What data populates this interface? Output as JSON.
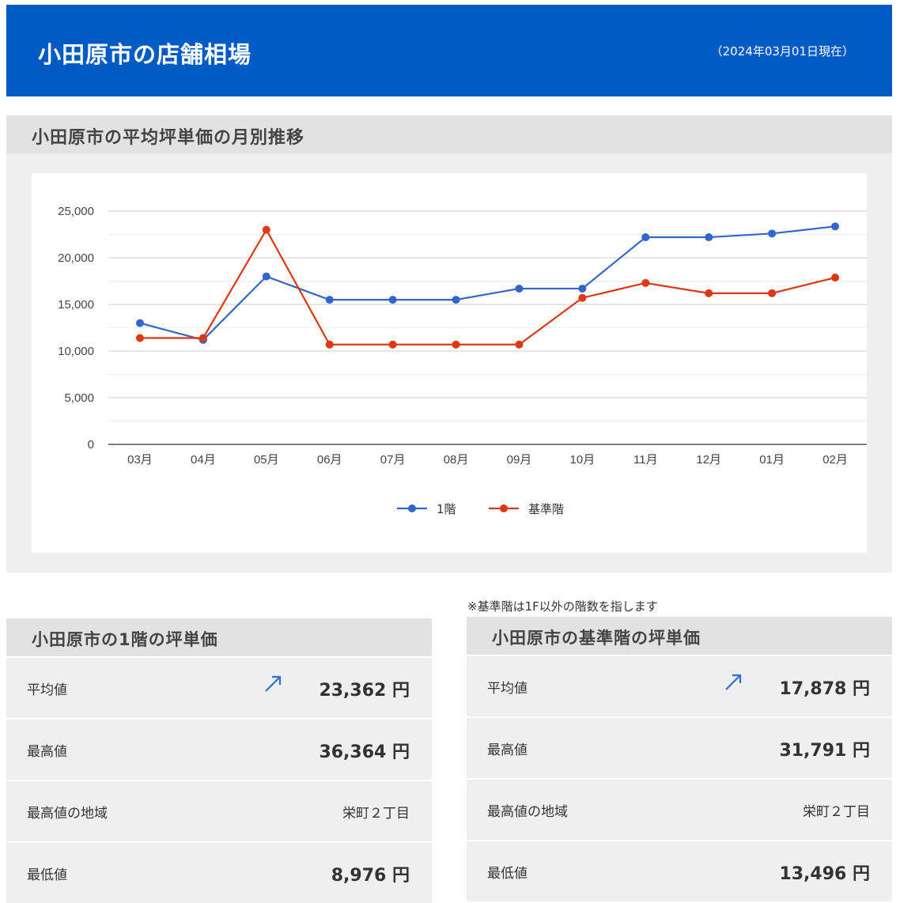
{
  "header": {
    "title": "小田原市の店舗相場",
    "date": "（2024年03月01日現在）"
  },
  "chart_section": {
    "title": "小田原市の平均坪単価の月別推移"
  },
  "colors": {
    "header_bg": "#005bc4",
    "series_1f": "#3366cc",
    "series_standard": "#dc3912"
  },
  "chart_data": {
    "type": "line",
    "categories": [
      "03月",
      "04月",
      "05月",
      "06月",
      "07月",
      "08月",
      "09月",
      "10月",
      "11月",
      "12月",
      "01月",
      "02月"
    ],
    "series": [
      {
        "name": "1階",
        "values": [
          13000,
          11200,
          18000,
          15500,
          15500,
          15500,
          16700,
          16700,
          22200,
          22200,
          22600,
          23362
        ]
      },
      {
        "name": "基準階",
        "values": [
          11400,
          11400,
          23000,
          10700,
          10700,
          10700,
          10700,
          15700,
          17300,
          16200,
          16200,
          17878
        ]
      }
    ],
    "yticks": [
      "0",
      "5,000",
      "10,000",
      "15,000",
      "20,000",
      "25,000"
    ],
    "ylim": [
      0,
      25000
    ],
    "grid": true,
    "legend": "bottom"
  },
  "note": "※基準階は1F以外の階数を指します",
  "panel_1f": {
    "title": "小田原市の1階の坪単価",
    "trend_icon": "arrow-up-right-icon",
    "rows": [
      {
        "label": "平均値",
        "value": "23,362 円"
      },
      {
        "label": "最高値",
        "value": "36,364 円"
      },
      {
        "label": "最高値の地域",
        "value": "栄町２丁目"
      },
      {
        "label": "最低値",
        "value": "8,976 円"
      }
    ]
  },
  "panel_standard": {
    "title": "小田原市の基準階の坪単価",
    "trend_icon": "arrow-up-right-icon",
    "rows": [
      {
        "label": "平均値",
        "value": "17,878 円"
      },
      {
        "label": "最高値",
        "value": "31,791 円"
      },
      {
        "label": "最高値の地域",
        "value": "栄町２丁目"
      },
      {
        "label": "最低値",
        "value": "13,496 円"
      }
    ]
  }
}
